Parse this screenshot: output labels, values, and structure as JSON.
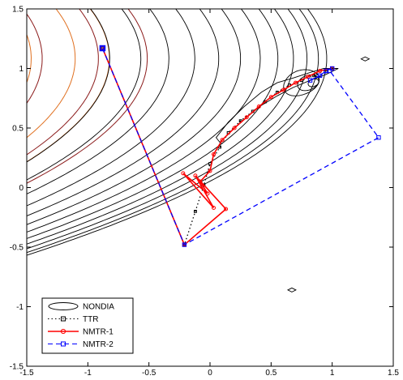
{
  "chart_data": {
    "type": "line",
    "title": "",
    "xlabel": "",
    "ylabel": "",
    "xlim": [
      -1.5,
      1.5
    ],
    "ylim": [
      -1.5,
      1.5
    ],
    "x_ticks": [
      "-1.5",
      "-1",
      "-0.5",
      "0",
      "0.5",
      "1",
      "1.5"
    ],
    "y_ticks": [
      "-1.5",
      "-1",
      "-0.5",
      "0",
      "0.5",
      "1",
      "1.5"
    ],
    "x_tick_values": [
      -1.5,
      -1,
      -0.5,
      0,
      0.5,
      1,
      1.5
    ],
    "y_tick_values": [
      -1.5,
      -1,
      -0.5,
      0,
      0.5,
      1,
      1.5
    ],
    "grid": false,
    "legend_position": "bottom-left",
    "background_contours": {
      "center": [
        1.0,
        1.0
      ],
      "orange_level_values": [
        0.08,
        0.36,
        0.72
      ],
      "red_level_values": [
        0.62,
        1.02,
        1.48
      ],
      "black_level_values": [
        0.06,
        0.14,
        0.25,
        0.38,
        0.53,
        0.7,
        0.89,
        1.1,
        1.33,
        1.58,
        1.85,
        2.15
      ],
      "colors": {
        "orange": "#e07020",
        "dark_red": "#8b1a1a",
        "black": "#000000"
      }
    },
    "series": [
      {
        "name": "NONDIA",
        "style": "contour",
        "color": "#000000",
        "x": [
          0.05,
          0.15,
          0.28,
          0.42,
          0.55,
          0.68,
          0.8,
          0.93,
          1.05,
          0.95,
          0.82,
          0.68,
          0.55,
          0.42,
          0.3,
          0.18,
          0.08,
          0.05
        ],
        "y": [
          0.42,
          0.55,
          0.68,
          0.8,
          0.88,
          0.92,
          0.96,
          1.0,
          1.0,
          0.95,
          0.9,
          0.84,
          0.77,
          0.69,
          0.59,
          0.48,
          0.38,
          0.42
        ]
      },
      {
        "name": "TTR",
        "style": "dotted",
        "color": "#000000",
        "marker": "square",
        "x": [
          -0.88,
          -0.21,
          -0.12,
          -0.05,
          0.0,
          0.08,
          0.15,
          0.25,
          0.35,
          0.45,
          0.55,
          0.65,
          0.75,
          0.85,
          0.95,
          1.0
        ],
        "y": [
          1.17,
          -0.48,
          -0.2,
          0.02,
          0.2,
          0.34,
          0.46,
          0.56,
          0.64,
          0.72,
          0.8,
          0.86,
          0.9,
          0.94,
          0.99,
          1.0
        ]
      },
      {
        "name": "NMTR-1",
        "style": "solid",
        "color": "#ff0000",
        "marker": "circle",
        "x": [
          -0.88,
          -0.21,
          0.13,
          -0.12,
          0.03,
          -0.22,
          -0.02,
          -0.08,
          0.0,
          0.03,
          0.1,
          0.2,
          0.3,
          0.4,
          0.5,
          0.6,
          0.7,
          0.8,
          0.9,
          1.0
        ],
        "y": [
          1.17,
          -0.48,
          -0.18,
          0.1,
          -0.17,
          0.12,
          -0.05,
          0.05,
          0.14,
          0.28,
          0.4,
          0.5,
          0.59,
          0.68,
          0.76,
          0.82,
          0.88,
          0.93,
          0.98,
          1.0
        ]
      },
      {
        "name": "NMTR-2",
        "style": "dashed",
        "color": "#0000ff",
        "marker": "square",
        "x": [
          -0.88,
          -0.21,
          1.38,
          0.98,
          0.82,
          0.9,
          0.95,
          1.0
        ],
        "y": [
          1.17,
          -0.48,
          0.42,
          0.98,
          0.9,
          0.94,
          0.98,
          1.0
        ]
      }
    ],
    "extra_markers": [
      {
        "x": 0.67,
        "y": -0.86
      },
      {
        "x": 1.27,
        "y": 1.08
      }
    ]
  }
}
